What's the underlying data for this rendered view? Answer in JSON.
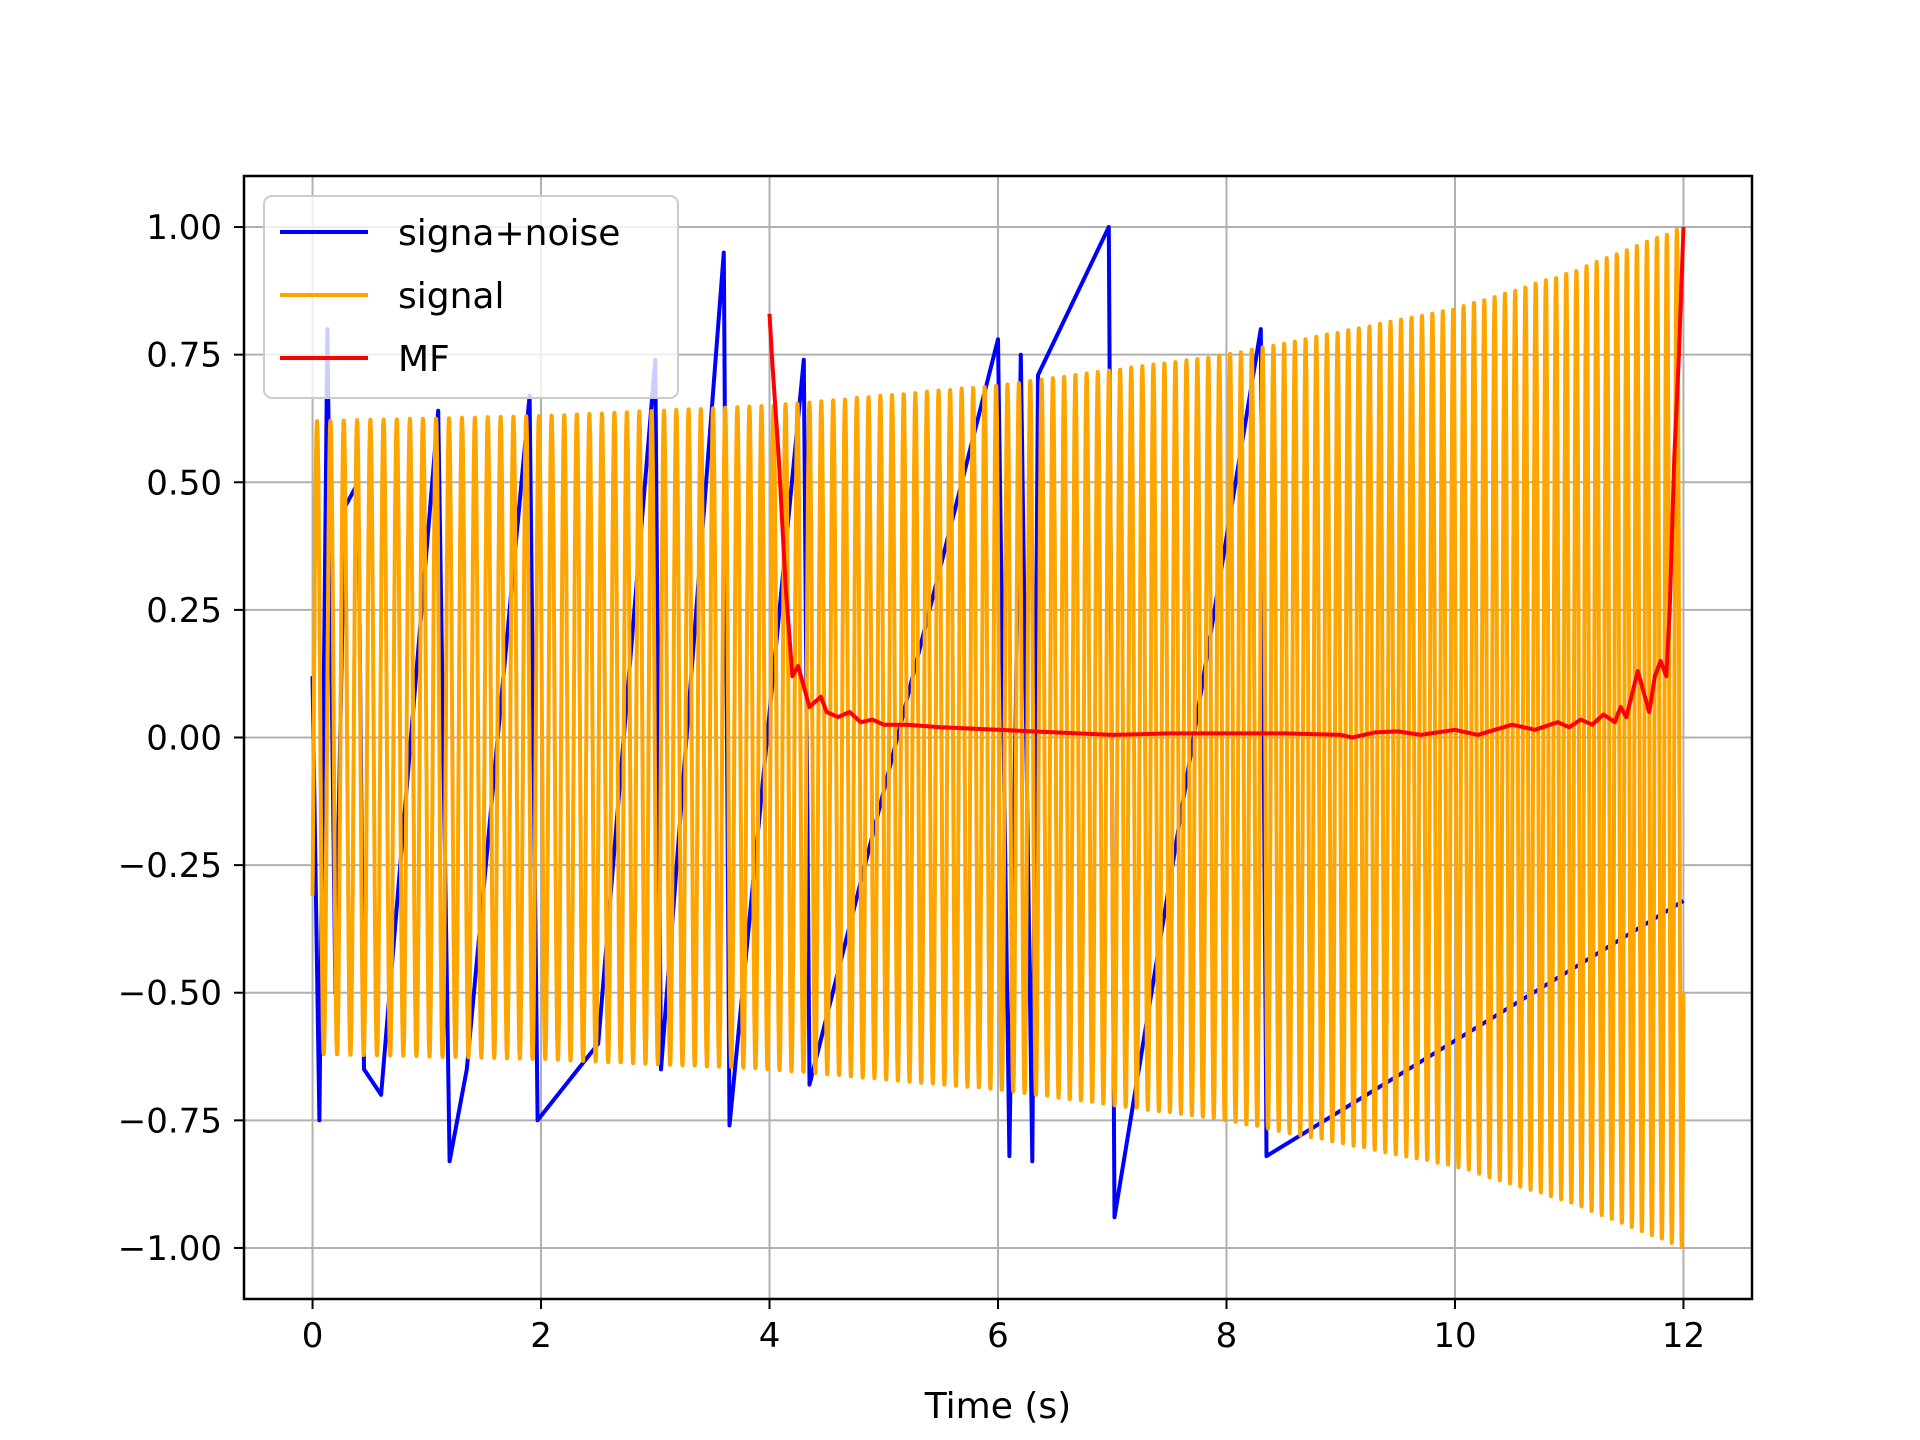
{
  "chart_data": {
    "type": "line",
    "title": "",
    "xlabel": "Time (s)",
    "ylabel": "",
    "xlim": [
      -0.6,
      12.6
    ],
    "ylim": [
      -1.1,
      1.1
    ],
    "grid": true,
    "legend_position": "top-left",
    "x_ticks": [
      {
        "value": 0,
        "label": "0"
      },
      {
        "value": 2,
        "label": "2"
      },
      {
        "value": 4,
        "label": "4"
      },
      {
        "value": 6,
        "label": "6"
      },
      {
        "value": 8,
        "label": "8"
      },
      {
        "value": 10,
        "label": "10"
      },
      {
        "value": 12,
        "label": "12"
      }
    ],
    "y_ticks": [
      {
        "value": 1.0,
        "label": "1.00"
      },
      {
        "value": 0.75,
        "label": "0.75"
      },
      {
        "value": 0.5,
        "label": "0.50"
      },
      {
        "value": 0.25,
        "label": "0.25"
      },
      {
        "value": 0.0,
        "label": "0.00"
      },
      {
        "value": -0.25,
        "label": "−0.25"
      },
      {
        "value": -0.5,
        "label": "−0.50"
      },
      {
        "value": -0.75,
        "label": "−0.75"
      },
      {
        "value": -1.0,
        "label": "−1.00"
      }
    ],
    "series": [
      {
        "name": "signa+noise",
        "color": "#0000ff",
        "x": [
          0,
          0.06,
          0.13,
          0.2,
          0.28,
          0.4,
          0.45,
          0.6,
          1.1,
          1.2,
          1.35,
          1.9,
          1.97,
          2.5,
          3.0,
          3.05,
          3.6,
          3.65,
          4.3,
          4.35,
          6.0,
          6.1,
          6.2,
          6.3,
          6.35,
          6.97,
          7.02,
          8.3,
          8.35,
          12.0
        ],
        "y": [
          0.12,
          -0.75,
          0.8,
          -0.5,
          0.45,
          0.5,
          -0.65,
          -0.7,
          0.64,
          -0.83,
          -0.65,
          0.67,
          -0.75,
          -0.6,
          0.74,
          -0.65,
          0.95,
          -0.76,
          0.74,
          -0.68,
          0.78,
          -0.82,
          0.75,
          -0.83,
          0.71,
          1.0,
          -0.94,
          0.8,
          -0.82,
          -0.32
        ]
      },
      {
        "name": "signal",
        "color": "#ffa500",
        "x_start": 0,
        "x_end": 12,
        "cycles": 120,
        "envelope": [
          {
            "x": 0,
            "amp": 0.62
          },
          {
            "x": 2,
            "amp": 0.63
          },
          {
            "x": 4,
            "amp": 0.65
          },
          {
            "x": 6,
            "amp": 0.69
          },
          {
            "x": 8,
            "amp": 0.75
          },
          {
            "x": 10,
            "amp": 0.84
          },
          {
            "x": 11,
            "amp": 0.91
          },
          {
            "x": 12,
            "amp": 1.0
          }
        ]
      },
      {
        "name": "MF",
        "color": "#ff0000",
        "x": [
          4.0,
          4.02,
          4.08,
          4.14,
          4.2,
          4.25,
          4.3,
          4.35,
          4.4,
          4.45,
          4.5,
          4.6,
          4.7,
          4.8,
          4.9,
          5.0,
          5.2,
          5.5,
          6.0,
          6.5,
          7.0,
          7.5,
          8.0,
          8.5,
          9.0,
          9.1,
          9.3,
          9.5,
          9.7,
          10.0,
          10.2,
          10.5,
          10.7,
          10.9,
          11.0,
          11.1,
          11.2,
          11.3,
          11.4,
          11.45,
          11.5,
          11.6,
          11.65,
          11.7,
          11.75,
          11.8,
          11.85,
          11.88,
          11.92,
          11.96,
          12.0
        ],
        "y": [
          0.83,
          0.75,
          0.55,
          0.3,
          0.12,
          0.14,
          0.1,
          0.06,
          0.07,
          0.08,
          0.05,
          0.04,
          0.05,
          0.03,
          0.035,
          0.025,
          0.025,
          0.02,
          0.015,
          0.01,
          0.005,
          0.008,
          0.008,
          0.008,
          0.005,
          0.0,
          0.01,
          0.012,
          0.005,
          0.015,
          0.005,
          0.025,
          0.015,
          0.03,
          0.02,
          0.035,
          0.025,
          0.045,
          0.03,
          0.06,
          0.04,
          0.13,
          0.09,
          0.05,
          0.12,
          0.15,
          0.12,
          0.25,
          0.55,
          0.75,
          1.0
        ]
      }
    ]
  }
}
